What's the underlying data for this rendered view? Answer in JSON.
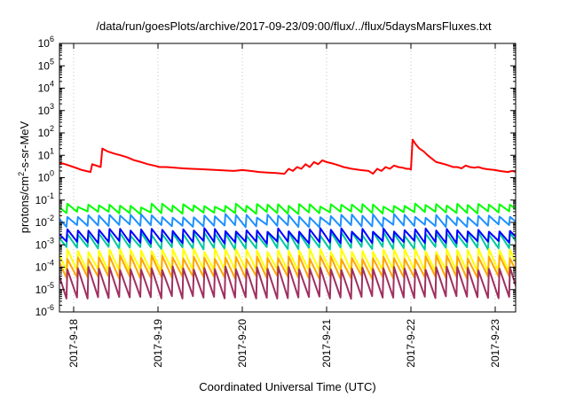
{
  "chart_data": {
    "type": "line",
    "title": "/data/run/goesPlots/archive/2017-09-23/09:00/flux/../flux/5daysMarsFluxes.txt",
    "xlabel": "Coordinated Universal Time (UTC)",
    "ylabel": "protons/cm²-s-sr-MeV",
    "ylabel_parts": {
      "pre": "protons/cm",
      "sup": "2",
      "post": "-s-sr-MeV"
    },
    "yscale": "log",
    "ylim": [
      1e-06,
      1000000.0
    ],
    "y_ticks": [
      {
        "base": "10",
        "exp": "-6",
        "value": 1e-06
      },
      {
        "base": "10",
        "exp": "-5",
        "value": 1e-05
      },
      {
        "base": "10",
        "exp": "-4",
        "value": 0.0001
      },
      {
        "base": "10",
        "exp": "-3",
        "value": 0.001
      },
      {
        "base": "10",
        "exp": "-2",
        "value": 0.01
      },
      {
        "base": "10",
        "exp": "-1",
        "value": 0.1
      },
      {
        "base": "10",
        "exp": "0",
        "value": 1
      },
      {
        "base": "10",
        "exp": "1",
        "value": 10
      },
      {
        "base": "10",
        "exp": "2",
        "value": 100
      },
      {
        "base": "10",
        "exp": "3",
        "value": 1000
      },
      {
        "base": "10",
        "exp": "4",
        "value": 10000
      },
      {
        "base": "10",
        "exp": "5",
        "value": 100000
      },
      {
        "base": "10",
        "exp": "6",
        "value": 1000000
      }
    ],
    "x_range_days": [
      0,
      5.62
    ],
    "x_ticks": [
      {
        "label": "2017-9-18",
        "day": 0
      },
      {
        "label": "2017-9-19",
        "day": 1
      },
      {
        "label": "2017-9-20",
        "day": 2
      },
      {
        "label": "2017-9-21",
        "day": 3
      },
      {
        "label": "2017-9-22",
        "day": 4
      },
      {
        "label": "2017-9-23",
        "day": 5
      }
    ],
    "grid": true,
    "series": [
      {
        "color": "#ff0000",
        "x": [
          -0.3,
          -0.2,
          -0.1,
          0,
          0.1,
          0.2,
          0.22,
          0.32,
          0.34,
          0.4,
          0.48,
          0.56,
          0.64,
          0.72,
          0.8,
          0.88,
          0.95,
          1.02,
          1.1,
          1.2,
          1.3,
          1.4,
          1.5,
          1.6,
          1.7,
          1.8,
          1.9,
          2.0,
          2.1,
          2.2,
          2.3,
          2.4,
          2.5,
          2.55,
          2.6,
          2.65,
          2.7,
          2.75,
          2.8,
          2.85,
          2.9,
          2.95,
          3.0,
          3.05,
          3.1,
          3.15,
          3.2,
          3.3,
          3.4,
          3.5,
          3.55,
          3.6,
          3.65,
          3.7,
          3.75,
          3.8,
          3.85,
          3.9,
          3.95,
          3.98,
          4.0,
          4.02,
          4.06,
          4.1,
          4.15,
          4.2,
          4.25,
          4.3,
          4.35,
          4.4,
          4.45,
          4.5,
          4.55,
          4.6,
          4.65,
          4.7,
          4.75,
          4.8,
          4.85,
          4.9,
          4.95,
          5.0,
          5.05,
          5.1,
          5.15,
          5.2,
          5.25,
          5.3,
          5.35,
          5.4,
          5.45,
          5.5,
          5.55,
          5.6
        ],
        "y": [
          6,
          5,
          4,
          3,
          2.2,
          1.8,
          4,
          3,
          20,
          15,
          12,
          10,
          8,
          6,
          5,
          4,
          3.5,
          3,
          3,
          2.8,
          2.6,
          2.5,
          2.4,
          2.3,
          2.2,
          2.1,
          2,
          2.2,
          2,
          1.8,
          1.7,
          1.6,
          1.5,
          2.5,
          2,
          3,
          2.5,
          4,
          3,
          5,
          4,
          6,
          5,
          4.5,
          4,
          3.5,
          3,
          2.5,
          2.2,
          2,
          1.5,
          2.5,
          2,
          3,
          2.5,
          3.5,
          3,
          2.8,
          2.5,
          2.5,
          2.3,
          50,
          30,
          20,
          15,
          10,
          7,
          5,
          4.5,
          4,
          3.5,
          3,
          3,
          2.6,
          3.5,
          3,
          2.8,
          3,
          2.6,
          2.4,
          2.3,
          2.2,
          2,
          1.9,
          1.8,
          2,
          1.8,
          1.7,
          1.6,
          1.5,
          1.4,
          1.6,
          1.5,
          1.3
        ]
      },
      {
        "color": "#00ff00",
        "base": 0.04,
        "amp": 0.32,
        "seed": 1
      },
      {
        "color": "#1e90ff",
        "base": 0.012,
        "amp": 0.45,
        "seed": 2
      },
      {
        "color": "#00c8a0",
        "base": 0.0015,
        "amp": 0.65,
        "seed": 3
      },
      {
        "color": "#0000ff",
        "base": 0.0025,
        "amp": 0.55,
        "seed": 4
      },
      {
        "color": "#ffff00",
        "base": 0.0002,
        "amp": 0.9,
        "seed": 5
      },
      {
        "color": "#ffa500",
        "base": 0.0001,
        "amp": 0.9,
        "seed": 6
      },
      {
        "color": "#a03060",
        "base": 2e-05,
        "amp": 1.3,
        "seed": 7
      }
    ]
  }
}
